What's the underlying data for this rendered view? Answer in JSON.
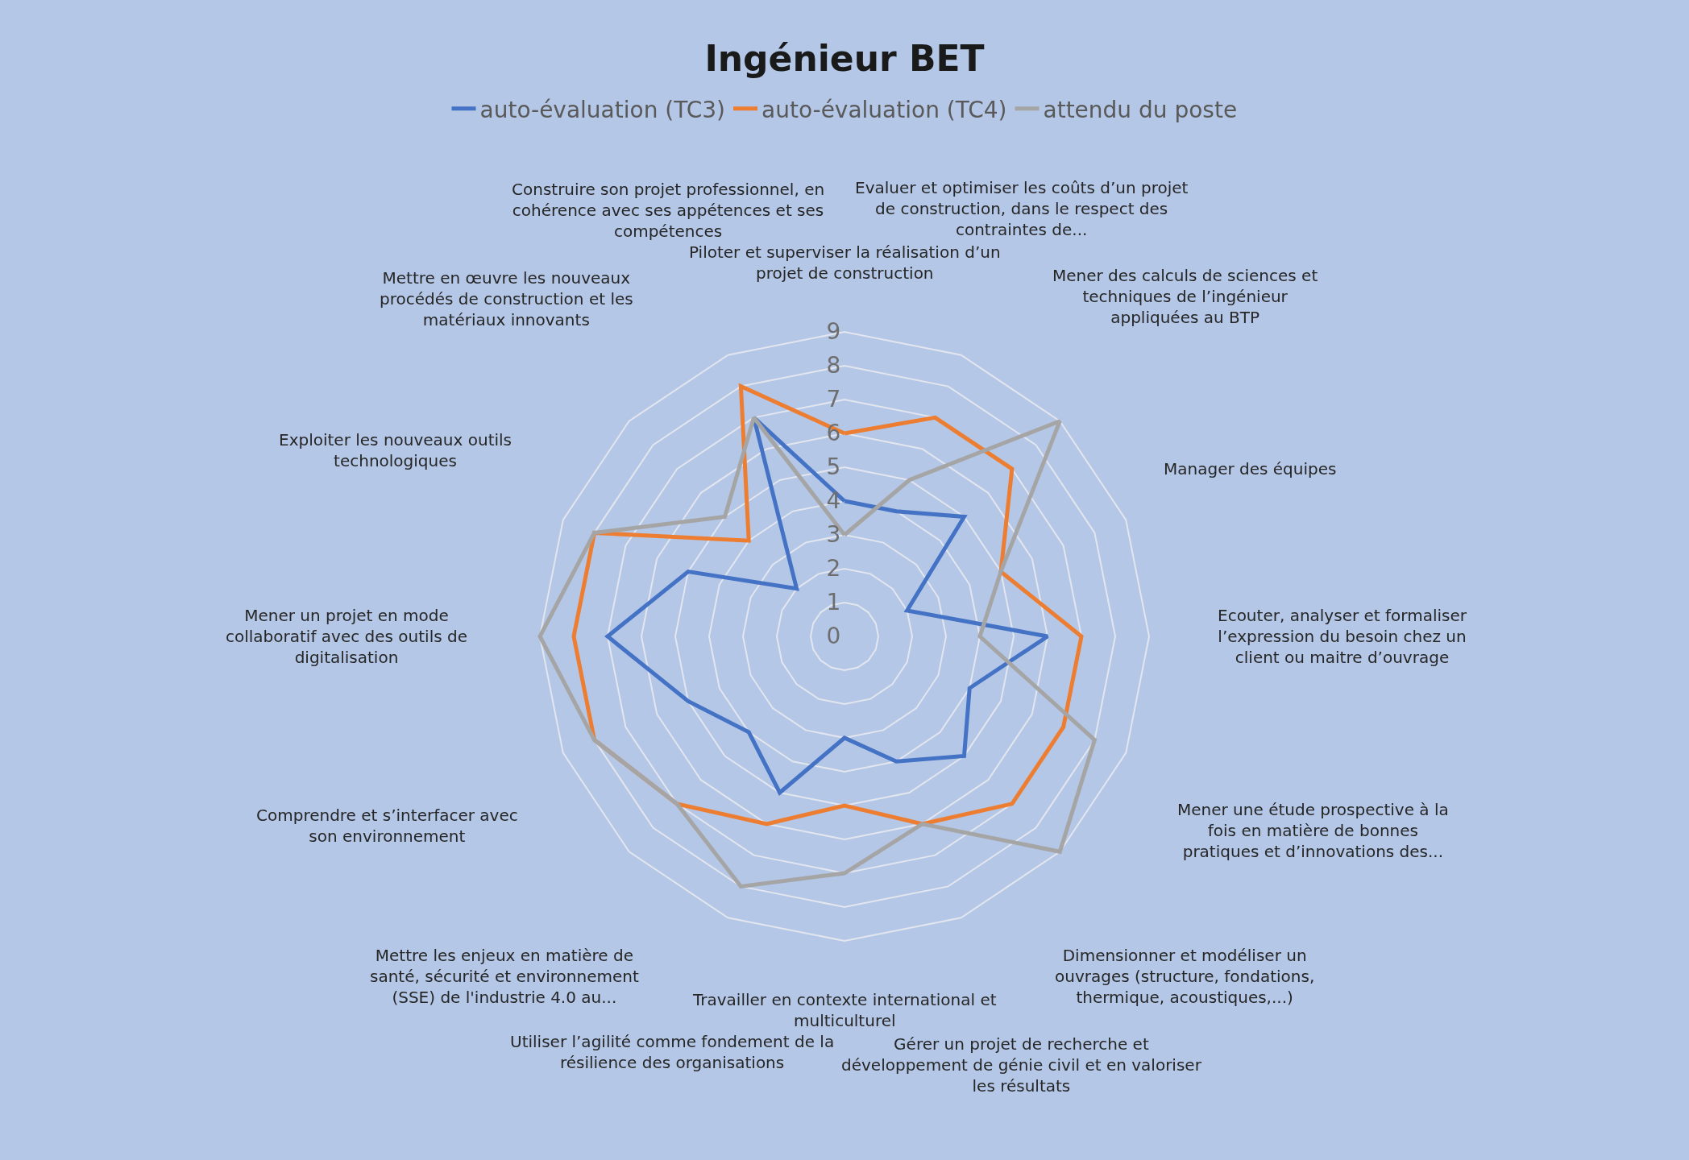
{
  "chart_data": {
    "type": "radar",
    "title": "Ingénieur BET",
    "categories": [
      "Piloter et superviser la réalisation d’un projet de construction",
      "Evaluer et optimiser les coûts d’un projet de construction, dans le respect des contraintes de...",
      "Mener des calculs de sciences et techniques de l’ingénieur appliquées au BTP",
      "Manager des équipes",
      "Ecouter, analyser et formaliser l’expression du besoin chez un client ou maitre d’ouvrage",
      "Mener une étude prospective à la fois en matière de bonnes pratiques et d’innovations des...",
      "Dimensionner et modéliser un ouvrages (structure, fondations, thermique, acoustiques,...)",
      "Gérer un projet de recherche et développement de génie civil et en valoriser les résultats",
      "Travailler en contexte international et multiculturel",
      "Utiliser l’agilité comme fondement de la résilience des organisations",
      "Mettre les enjeux en matière de santé, sécurité et environnement (SSE) de l'industrie 4.0 au...",
      "Comprendre et s’interfacer avec son environnement",
      "Mener un projet en mode collaboratif avec des outils de digitalisation",
      "Exploiter les nouveaux outils technologiques",
      "Mettre en œuvre les nouveaux procédés de construction et les matériaux innovants",
      "Construire son projet professionnel, en cohérence avec ses appétences et ses compétences"
    ],
    "series": [
      {
        "name": "auto-évaluation (TC3)",
        "color": "#4472c4",
        "values": [
          4,
          4,
          5,
          2,
          6,
          4,
          5,
          4,
          3,
          5,
          4,
          5,
          7,
          5,
          2,
          7
        ]
      },
      {
        "name": "auto-évaluation (TC4)",
        "color": "#ed7d31",
        "values": [
          6,
          7,
          7,
          5,
          7,
          7,
          7,
          6,
          5,
          6,
          7,
          8,
          8,
          8,
          4,
          8
        ]
      },
      {
        "name": "attendu du poste",
        "color": "#a5a5a5",
        "values": [
          3,
          5,
          9,
          5,
          4,
          8,
          9,
          6,
          7,
          8,
          7,
          8,
          9,
          8,
          5,
          7
        ]
      }
    ],
    "ylim": [
      0,
      10
    ],
    "yticks": [
      0,
      1,
      2,
      3,
      4,
      5,
      6,
      7,
      8,
      9
    ],
    "grid": "y",
    "legend": "top",
    "marker": "none",
    "line_style": "solid"
  }
}
